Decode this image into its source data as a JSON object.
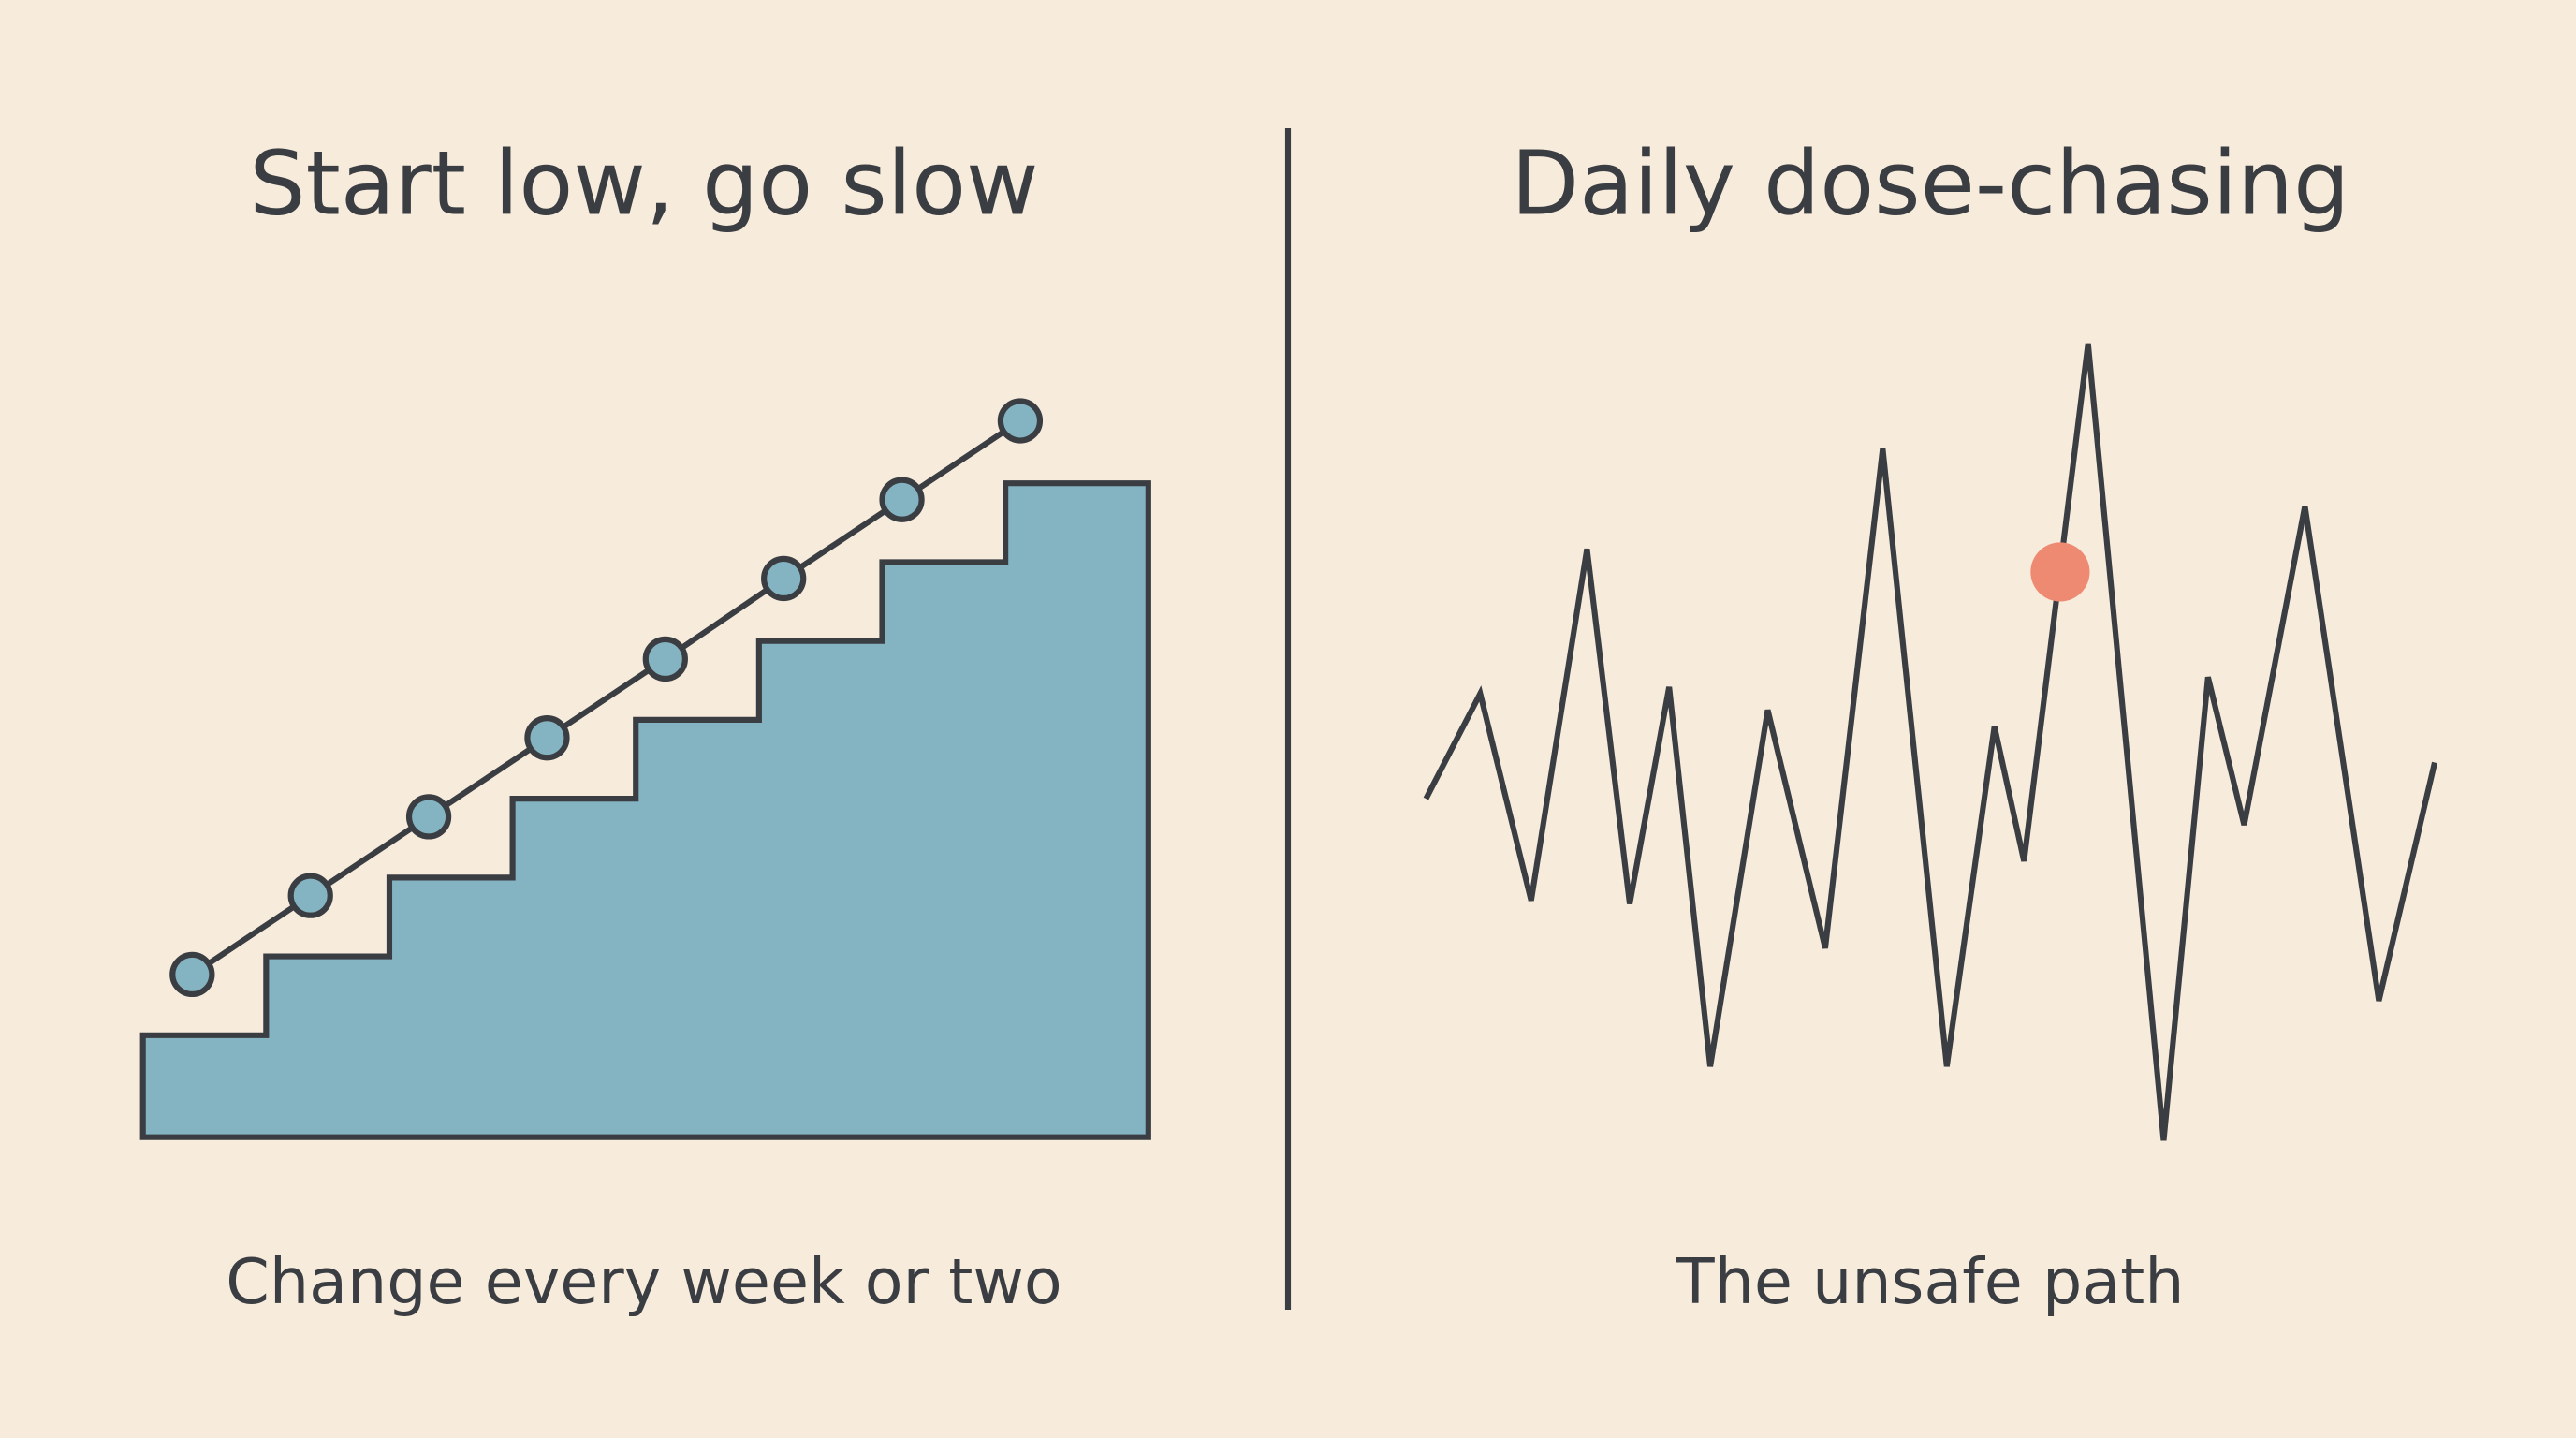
{
  "left_panel": {
    "title": "Start low, go slow",
    "caption": "Change every week or two"
  },
  "right_panel": {
    "title": "Daily dose-chasing",
    "caption": "The unsafe path"
  }
}
